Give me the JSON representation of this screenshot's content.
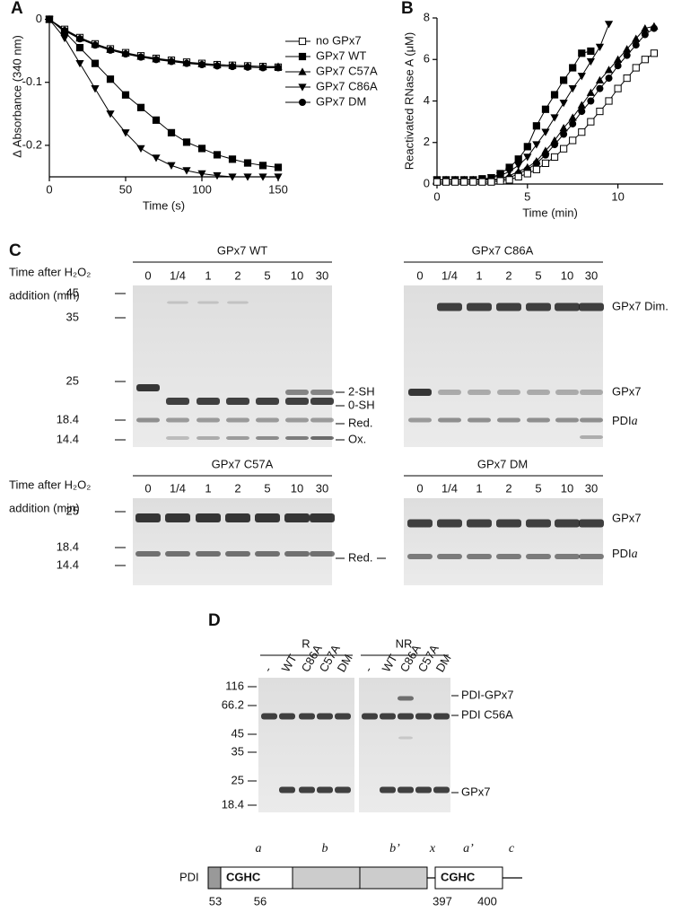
{
  "chart_data": [
    {
      "type": "line",
      "label": "A",
      "y_label": "Δ Absorbance (340 nm)",
      "x_label": "Time (s)",
      "x": [
        0,
        10,
        20,
        30,
        40,
        50,
        60,
        70,
        80,
        90,
        100,
        110,
        120,
        130,
        140,
        150
      ],
      "xlim": [
        0,
        150
      ],
      "xticks": [
        0,
        50,
        100,
        150
      ],
      "ylim": [
        -0.25,
        0.005
      ],
      "yticks": [
        0,
        -0.1,
        -0.2
      ],
      "series": [
        {
          "name": "no GPx7",
          "marker": "open-square",
          "color": "#000",
          "values": [
            0,
            -0.016,
            -0.029,
            -0.039,
            -0.047,
            -0.053,
            -0.058,
            -0.062,
            -0.065,
            -0.068,
            -0.07,
            -0.072,
            -0.073,
            -0.074,
            -0.075,
            -0.076
          ]
        },
        {
          "name": "GPx7 WT",
          "marker": "square",
          "color": "#000",
          "values": [
            0,
            -0.02,
            -0.045,
            -0.07,
            -0.095,
            -0.12,
            -0.14,
            -0.16,
            -0.18,
            -0.195,
            -0.205,
            -0.215,
            -0.222,
            -0.228,
            -0.232,
            -0.235
          ]
        },
        {
          "name": "GPx7 C57A",
          "marker": "triangle-up",
          "color": "#000",
          "values": [
            0,
            -0.017,
            -0.03,
            -0.04,
            -0.048,
            -0.054,
            -0.059,
            -0.063,
            -0.066,
            -0.069,
            -0.071,
            -0.072,
            -0.073,
            -0.074,
            -0.075,
            -0.075
          ]
        },
        {
          "name": "GPx7 C86A",
          "marker": "triangle-down",
          "color": "#000",
          "values": [
            0,
            -0.03,
            -0.07,
            -0.11,
            -0.15,
            -0.18,
            -0.205,
            -0.22,
            -0.232,
            -0.24,
            -0.245,
            -0.248,
            -0.25,
            -0.25,
            -0.25,
            -0.25
          ]
        },
        {
          "name": "GPx7 DM",
          "marker": "circle",
          "color": "#000",
          "values": [
            0,
            -0.018,
            -0.031,
            -0.041,
            -0.049,
            -0.055,
            -0.06,
            -0.064,
            -0.067,
            -0.07,
            -0.072,
            -0.074,
            -0.075,
            -0.076,
            -0.077,
            -0.077
          ]
        }
      ]
    },
    {
      "type": "line",
      "label": "B",
      "y_label": "Reactivated RNase A (μM)",
      "x_label": "Time (min)",
      "x": [
        0,
        0.5,
        1,
        1.5,
        2,
        2.5,
        3,
        3.5,
        4,
        4.5,
        5,
        5.5,
        6,
        6.5,
        7,
        7.5,
        8,
        8.5,
        9,
        9.5,
        10,
        10.5,
        11,
        11.5,
        12
      ],
      "xlim": [
        0,
        12.5
      ],
      "xticks": [
        0,
        5,
        10
      ],
      "ylim": [
        0,
        8
      ],
      "yticks": [
        0,
        2,
        4,
        6,
        8
      ],
      "series": [
        {
          "marker": "square",
          "color": "#000",
          "values": [
            0.2,
            0.2,
            0.2,
            0.2,
            0.2,
            0.25,
            0.3,
            0.5,
            0.8,
            1.2,
            1.8,
            2.8,
            3.6,
            4.3,
            5.0,
            5.6,
            6.3,
            6.4,
            null,
            null,
            null,
            null,
            null,
            null,
            null
          ]
        },
        {
          "marker": "triangle-down",
          "color": "#000",
          "values": [
            0.2,
            0.2,
            0.2,
            0.2,
            0.2,
            0.2,
            0.3,
            0.4,
            0.6,
            0.9,
            1.3,
            1.9,
            2.5,
            3.2,
            3.9,
            4.6,
            5.2,
            5.9,
            6.6,
            7.7,
            null,
            null,
            null,
            null,
            null
          ]
        },
        {
          "marker": "triangle-up",
          "color": "#000",
          "values": [
            0.2,
            0.2,
            0.2,
            0.2,
            0.2,
            0.2,
            0.2,
            0.25,
            0.4,
            0.6,
            0.8,
            1.1,
            1.6,
            2.1,
            2.7,
            3.2,
            3.8,
            4.4,
            5.0,
            5.5,
            6.0,
            6.5,
            7.0,
            7.5,
            7.6
          ]
        },
        {
          "marker": "circle",
          "color": "#000",
          "values": [
            0.2,
            0.2,
            0.2,
            0.2,
            0.2,
            0.2,
            0.2,
            0.2,
            0.3,
            0.5,
            0.7,
            1.0,
            1.4,
            1.9,
            2.4,
            2.9,
            3.5,
            4.0,
            4.6,
            5.1,
            5.7,
            6.2,
            6.7,
            7.2,
            7.5
          ]
        },
        {
          "marker": "open-square",
          "color": "#000",
          "values": [
            0.1,
            0.1,
            0.1,
            0.1,
            0.1,
            0.1,
            0.1,
            0.15,
            0.2,
            0.35,
            0.5,
            0.7,
            1.0,
            1.3,
            1.7,
            2.1,
            2.5,
            3.0,
            3.5,
            4.0,
            4.6,
            5.1,
            5.6,
            6.0,
            6.3
          ]
        }
      ]
    }
  ],
  "panel_c": {
    "label": "C",
    "time_label": "Time after H₂O₂",
    "time_unit": "addition (min)",
    "lanes": [
      "0",
      "1/4",
      "1",
      "2",
      "5",
      "10",
      "30"
    ],
    "gels": [
      {
        "title": "GPx7 WT",
        "markers": [
          "45",
          "35",
          "25",
          "18.4",
          "14.4"
        ],
        "labels": [
          "2-SH",
          "0-SH",
          "Red.",
          "Ox."
        ]
      },
      {
        "title": "GPx7 C86A",
        "labels": [
          "GPx7 Dim.",
          "GPx7"
        ],
        "pdi": {
          "name": "PDI",
          "domain": "a"
        }
      },
      {
        "title": "GPx7 C57A",
        "markers": [
          "25",
          "18.4",
          "14.4"
        ],
        "labels": [
          "Red."
        ]
      },
      {
        "title": "GPx7 DM",
        "labels": [
          "GPx7"
        ],
        "pdi": {
          "name": "PDI",
          "domain": "a"
        }
      }
    ]
  },
  "panel_d": {
    "label": "D",
    "groups": [
      "R",
      "NR"
    ],
    "lanes": [
      "-",
      "WT",
      "C86A",
      "C57A",
      "DM"
    ],
    "markers": [
      "116",
      "66.2",
      "45",
      "35",
      "25",
      "18.4"
    ],
    "labels": [
      "PDI-GPx7",
      "PDI C56A",
      "GPx7"
    ]
  },
  "domains": {
    "protein": "PDI",
    "motif": "CGHC",
    "names": [
      "a",
      "b",
      "b’",
      "x",
      "a’",
      "c"
    ],
    "residues": [
      "53",
      "56",
      "397",
      "400"
    ]
  }
}
